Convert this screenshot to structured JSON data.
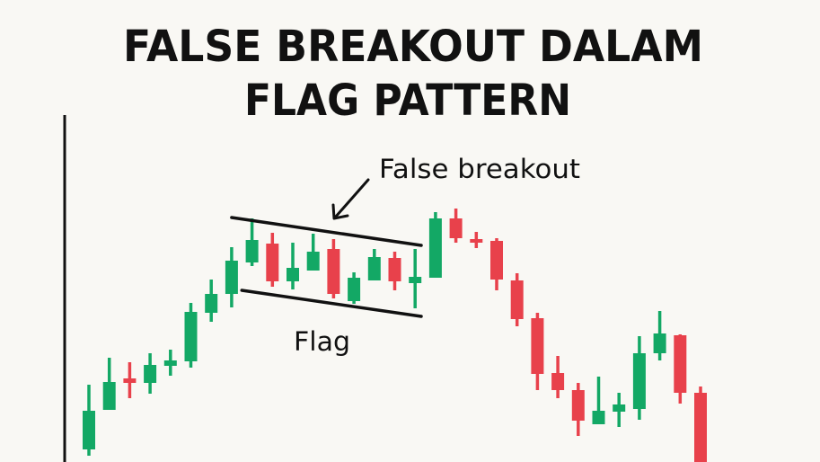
{
  "chart_data": {
    "type": "candlestick",
    "title_lines": [
      "FALSE BREAKOUT DALAM",
      "FLAG PATTERN"
    ],
    "xlabel": "",
    "ylabel": "",
    "ylim": [
      0,
      400
    ],
    "grid": false,
    "colors": {
      "up": "#13a865",
      "down": "#e8414b",
      "background": "#f9f8f4",
      "lines": "#111111"
    },
    "candles": [
      {
        "o": 20,
        "h": 92,
        "l": 13,
        "c": 63
      },
      {
        "o": 64,
        "h": 122,
        "l": 64,
        "c": 95
      },
      {
        "o": 99,
        "h": 117,
        "l": 77,
        "c": 94
      },
      {
        "o": 94,
        "h": 127,
        "l": 82,
        "c": 114
      },
      {
        "o": 113,
        "h": 131,
        "l": 102,
        "c": 119
      },
      {
        "o": 118,
        "h": 183,
        "l": 111,
        "c": 173
      },
      {
        "o": 172,
        "h": 209,
        "l": 162,
        "c": 193
      },
      {
        "o": 193,
        "h": 245,
        "l": 178,
        "c": 230
      },
      {
        "o": 228,
        "h": 277,
        "l": 224,
        "c": 253
      },
      {
        "o": 249,
        "h": 261,
        "l": 201,
        "c": 207
      },
      {
        "o": 207,
        "h": 250,
        "l": 198,
        "c": 222
      },
      {
        "o": 219,
        "h": 260,
        "l": 219,
        "c": 240
      },
      {
        "o": 243,
        "h": 254,
        "l": 188,
        "c": 193
      },
      {
        "o": 185,
        "h": 217,
        "l": 182,
        "c": 211
      },
      {
        "o": 208,
        "h": 243,
        "l": 208,
        "c": 234
      },
      {
        "o": 233,
        "h": 240,
        "l": 197,
        "c": 207
      },
      {
        "o": 205,
        "h": 243,
        "l": 177,
        "c": 212
      },
      {
        "o": 211,
        "h": 284,
        "l": 211,
        "c": 277
      },
      {
        "o": 277,
        "h": 288,
        "l": 250,
        "c": 255
      },
      {
        "o": 254,
        "h": 262,
        "l": 244,
        "c": 251
      },
      {
        "o": 252,
        "h": 255,
        "l": 197,
        "c": 209
      },
      {
        "o": 208,
        "h": 216,
        "l": 157,
        "c": 165
      },
      {
        "o": 166,
        "h": 172,
        "l": 86,
        "c": 104
      },
      {
        "o": 105,
        "h": 124,
        "l": 77,
        "c": 86
      },
      {
        "o": 86,
        "h": 94,
        "l": 35,
        "c": 52
      },
      {
        "o": 48,
        "h": 101,
        "l": 48,
        "c": 63
      },
      {
        "o": 62,
        "h": 83,
        "l": 45,
        "c": 70
      },
      {
        "o": 65,
        "h": 146,
        "l": 53,
        "c": 127
      },
      {
        "o": 127,
        "h": 174,
        "l": 119,
        "c": 149
      },
      {
        "o": 147,
        "h": 148,
        "l": 71,
        "c": 83
      },
      {
        "o": 83,
        "h": 90,
        "l": -20,
        "c": -10
      }
    ],
    "flag_lines": {
      "upper": {
        "from": {
          "candle": 7.0,
          "price": 278
        },
        "to": {
          "candle": 16.3,
          "price": 247
        }
      },
      "lower": {
        "from": {
          "candle": 7.5,
          "price": 197
        },
        "to": {
          "candle": 16.3,
          "price": 168
        }
      }
    },
    "annotations": {
      "false_breakout": "False breakout",
      "flag": "Flag"
    }
  }
}
